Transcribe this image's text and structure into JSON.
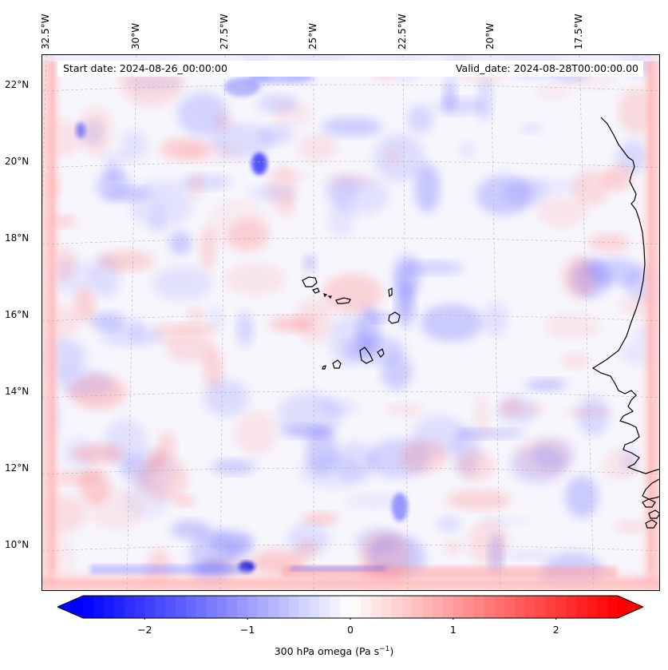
{
  "map": {
    "lon_labels": [
      "32.5°W",
      "30°W",
      "27.5°W",
      "25°W",
      "22.5°W",
      "20°W",
      "17.5°W"
    ],
    "lat_labels": [
      "22°N",
      "20°N",
      "18°N",
      "16°N",
      "14°N",
      "12°N",
      "10°N"
    ],
    "start_date": "Start date: 2024-08-26_00:00:00",
    "valid_date": "Valid_date: 2024-08-28T00:00:00.00",
    "coastline_color": "#000000",
    "gridline_color": "#b0b0b0",
    "field_description_features": [
      "cape-verde-islands-icon",
      "west-africa-coastline-icon"
    ]
  },
  "colorbar": {
    "ticks": [
      "−2",
      "−1",
      "0",
      "1",
      "2"
    ],
    "tick_values": [
      -2,
      -1,
      0,
      1,
      2
    ],
    "range": [
      -2.6,
      2.6
    ],
    "label_main": "300 hPa omega (Pa s",
    "label_sup": "−1",
    "label_end": ")",
    "cmap": "bwr",
    "color_negative": "#0000ff",
    "color_zero": "#ffffff",
    "color_positive": "#ff0000",
    "extend": "both"
  }
}
